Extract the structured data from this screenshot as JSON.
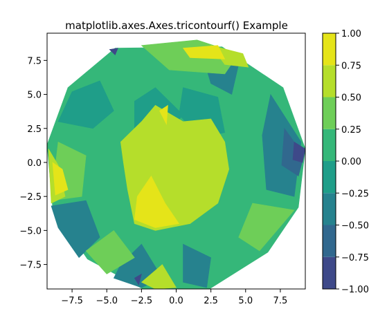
{
  "chart_data": {
    "type": "tricontourf",
    "title": "matplotlib.axes.Axes.tricontourf() Example",
    "xlabel": "",
    "ylabel": "",
    "xlim": [
      -9.3,
      9.3
    ],
    "ylim": [
      -9.3,
      9.5
    ],
    "x_ticks": [
      -7.5,
      -5.0,
      -2.5,
      0.0,
      2.5,
      5.0,
      7.5
    ],
    "x_tick_labels": [
      "−7.5",
      "−5.0",
      "−2.5",
      "0.0",
      "2.5",
      "5.0",
      "7.5"
    ],
    "y_ticks": [
      -7.5,
      -5.0,
      -2.5,
      0.0,
      2.5,
      5.0,
      7.5
    ],
    "y_tick_labels": [
      "−7.5",
      "−5.0",
      "−2.5",
      "0.0",
      "2.5",
      "5.0",
      "7.5"
    ],
    "grid": false,
    "domain_polygon": [
      [
        -4.4,
        8.4
      ],
      [
        3.3,
        8.5
      ],
      [
        7.7,
        5.5
      ],
      [
        9.3,
        1.0
      ],
      [
        8.8,
        -3.3
      ],
      [
        6.6,
        -6.6
      ],
      [
        2.4,
        -9.3
      ],
      [
        -2.4,
        -9.3
      ],
      [
        -6.4,
        -7.1
      ],
      [
        -8.9,
        -3.3
      ],
      [
        -9.3,
        1.3
      ],
      [
        -7.8,
        5.5
      ]
    ],
    "colormap": "viridis",
    "colorbar": {
      "levels": [
        -1.0,
        -0.75,
        -0.5,
        -0.25,
        0.0,
        0.25,
        0.5,
        0.75,
        1.0
      ],
      "tick_labels": [
        "−1.00",
        "−0.75",
        "−0.50",
        "−0.25",
        "0.00",
        "0.25",
        "0.50",
        "0.75",
        "1.00"
      ],
      "colors": [
        "#46327e",
        "#365c8d",
        "#277f8e",
        "#1fa187",
        "#4ac16d",
        "#a0da39",
        "#fde725",
        "#d2e21b"
      ],
      "band_colors": [
        "#3e4989",
        "#31688e",
        "#26828e",
        "#1f9e89",
        "#35b779",
        "#6ece58",
        "#b5de2b",
        "#e5e419"
      ]
    },
    "regions": [
      {
        "level": 0.0,
        "poly": [
          [
            -4.4,
            8.4
          ],
          [
            3.3,
            8.5
          ],
          [
            7.7,
            5.5
          ],
          [
            9.3,
            1.0
          ],
          [
            8.8,
            -3.3
          ],
          [
            6.6,
            -6.6
          ],
          [
            2.4,
            -9.3
          ],
          [
            -2.4,
            -9.3
          ],
          [
            -6.4,
            -7.1
          ],
          [
            -8.9,
            -3.3
          ],
          [
            -9.3,
            1.3
          ],
          [
            -7.8,
            5.5
          ]
        ]
      },
      {
        "level": -0.25,
        "poly": [
          [
            -7.5,
            5.2
          ],
          [
            -5.5,
            6.0
          ],
          [
            -4.5,
            3.8
          ],
          [
            -6.0,
            2.5
          ],
          [
            -8.5,
            3.0
          ]
        ]
      },
      {
        "level": -0.5,
        "poly": [
          [
            -9.0,
            -3.2
          ],
          [
            -6.5,
            -2.8
          ],
          [
            -5.5,
            -5.5
          ],
          [
            -7.0,
            -7.0
          ],
          [
            -8.5,
            -4.8
          ]
        ]
      },
      {
        "level": -0.5,
        "poly": [
          [
            6.8,
            5.0
          ],
          [
            9.0,
            1.5
          ],
          [
            8.5,
            -2.5
          ],
          [
            6.5,
            -2.0
          ],
          [
            6.2,
            2.0
          ]
        ]
      },
      {
        "level": -0.75,
        "poly": [
          [
            7.8,
            2.5
          ],
          [
            9.2,
            0.5
          ],
          [
            8.8,
            -1.0
          ],
          [
            7.6,
            -0.2
          ]
        ]
      },
      {
        "level": -0.5,
        "poly": [
          [
            2.0,
            7.5
          ],
          [
            4.5,
            7.2
          ],
          [
            4.0,
            5.0
          ],
          [
            2.5,
            5.8
          ]
        ]
      },
      {
        "level": -0.25,
        "poly": [
          [
            -3.0,
            4.5
          ],
          [
            -1.5,
            5.5
          ],
          [
            0.5,
            3.5
          ],
          [
            -0.8,
            2.0
          ],
          [
            -3.0,
            2.2
          ]
        ]
      },
      {
        "level": -0.25,
        "poly": [
          [
            0.5,
            5.5
          ],
          [
            3.0,
            4.8
          ],
          [
            3.5,
            2.2
          ],
          [
            1.8,
            1.8
          ],
          [
            0.2,
            3.5
          ]
        ]
      },
      {
        "level": -0.5,
        "poly": [
          [
            -4.0,
            -7.5
          ],
          [
            -2.5,
            -6.0
          ],
          [
            -1.0,
            -8.5
          ],
          [
            -2.5,
            -9.2
          ],
          [
            -4.5,
            -8.5
          ]
        ]
      },
      {
        "level": -0.5,
        "poly": [
          [
            0.5,
            -6.0
          ],
          [
            2.5,
            -7.0
          ],
          [
            2.2,
            -9.2
          ],
          [
            0.5,
            -8.8
          ]
        ]
      },
      {
        "level": 0.25,
        "poly": [
          [
            -2.5,
            8.6
          ],
          [
            1.5,
            9.0
          ],
          [
            4.5,
            8.0
          ],
          [
            3.5,
            6.5
          ],
          [
            -0.5,
            6.8
          ]
        ]
      },
      {
        "level": 0.25,
        "poly": [
          [
            6.0,
            -6.5
          ],
          [
            8.5,
            -3.5
          ],
          [
            5.5,
            -3.0
          ],
          [
            4.5,
            -5.5
          ]
        ]
      },
      {
        "level": 0.25,
        "poly": [
          [
            -8.5,
            1.5
          ],
          [
            -6.5,
            0.5
          ],
          [
            -6.8,
            -2.5
          ],
          [
            -9.0,
            -2.8
          ]
        ]
      },
      {
        "level": 0.25,
        "poly": [
          [
            -6.5,
            -6.5
          ],
          [
            -4.5,
            -5.0
          ],
          [
            -3.0,
            -7.0
          ],
          [
            -5.0,
            -8.2
          ]
        ]
      },
      {
        "level": 0.5,
        "poly": [
          [
            -2.5,
            -8.8
          ],
          [
            -1.0,
            -7.5
          ],
          [
            0.0,
            -9.2
          ],
          [
            -1.5,
            -9.3
          ]
        ]
      },
      {
        "level": 0.5,
        "poly": [
          [
            -4.0,
            1.5
          ],
          [
            -2.5,
            3.0
          ],
          [
            -1.5,
            4.2
          ],
          [
            0.5,
            3.0
          ],
          [
            2.5,
            3.2
          ],
          [
            3.5,
            1.5
          ],
          [
            3.8,
            -0.5
          ],
          [
            3.0,
            -3.0
          ],
          [
            1.0,
            -4.5
          ],
          [
            -1.5,
            -5.0
          ],
          [
            -3.0,
            -4.5
          ],
          [
            -3.5,
            -2.0
          ],
          [
            -3.8,
            0.0
          ]
        ]
      },
      {
        "level": 0.5,
        "poly": [
          [
            -9.2,
            1.0
          ],
          [
            -8.5,
            -0.2
          ],
          [
            -8.0,
            -2.5
          ],
          [
            -9.0,
            -3.0
          ]
        ]
      },
      {
        "level": 0.5,
        "poly": [
          [
            2.5,
            8.6
          ],
          [
            4.8,
            8.0
          ],
          [
            5.2,
            7.0
          ],
          [
            3.5,
            7.2
          ]
        ]
      },
      {
        "level": 0.75,
        "poly": [
          [
            -8.9,
            0.0
          ],
          [
            -8.2,
            -0.5
          ],
          [
            -7.8,
            -2.0
          ],
          [
            -8.7,
            -2.4
          ]
        ]
      },
      {
        "level": 0.75,
        "poly": [
          [
            -2.8,
            -2.5
          ],
          [
            -1.8,
            -1.0
          ],
          [
            -0.8,
            -3.0
          ],
          [
            0.2,
            -4.5
          ],
          [
            -1.5,
            -4.8
          ],
          [
            -3.0,
            -4.2
          ]
        ]
      },
      {
        "level": 0.75,
        "poly": [
          [
            0.5,
            8.4
          ],
          [
            3.0,
            8.6
          ],
          [
            3.5,
            7.6
          ],
          [
            1.0,
            7.7
          ]
        ]
      },
      {
        "level": 0.75,
        "poly": [
          [
            -1.2,
            3.8
          ],
          [
            -0.6,
            4.2
          ],
          [
            -0.7,
            2.8
          ]
        ]
      },
      {
        "level": -1.0,
        "poly": [
          [
            8.5,
            1.5
          ],
          [
            9.3,
            1.0
          ],
          [
            9.1,
            0.0
          ],
          [
            8.4,
            0.2
          ]
        ]
      },
      {
        "level": -1.0,
        "poly": [
          [
            -3.0,
            -8.5
          ],
          [
            -2.5,
            -8.2
          ],
          [
            -2.7,
            -9.0
          ]
        ]
      },
      {
        "level": -1.0,
        "poly": [
          [
            -4.8,
            8.3
          ],
          [
            -4.2,
            8.4
          ],
          [
            -4.4,
            7.9
          ]
        ]
      }
    ]
  }
}
